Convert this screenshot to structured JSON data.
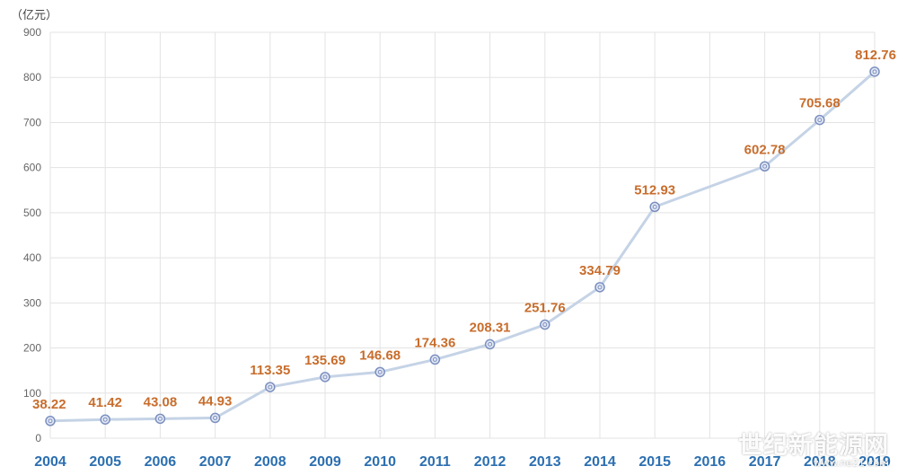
{
  "unit_label": "（亿元）",
  "watermark": {
    "title": "世纪新能源网",
    "url": "www.ne21.com"
  },
  "chart_data": {
    "type": "line",
    "title": "",
    "xlabel": "",
    "ylabel": "（亿元）",
    "x": [
      "2004",
      "2005",
      "2006",
      "2007",
      "2008",
      "2009",
      "2010",
      "2011",
      "2012",
      "2013",
      "2014",
      "2015",
      "2016",
      "2017",
      "2018",
      "2019"
    ],
    "ylim": [
      0,
      900
    ],
    "yticks": [
      0,
      100,
      200,
      300,
      400,
      500,
      600,
      700,
      800,
      900
    ],
    "grid": true,
    "series": [
      {
        "values": [
          38.22,
          41.42,
          43.08,
          44.93,
          113.35,
          135.69,
          146.68,
          174.36,
          208.31,
          251.76,
          334.79,
          512.93,
          null,
          602.78,
          705.68,
          812.76
        ],
        "labels": [
          "38.22",
          "41.42",
          "43.08",
          "44.93",
          "113.35",
          "135.69",
          "146.68",
          "174.36",
          "208.31",
          "251.76",
          "334.79",
          "512.93",
          "",
          "602.78",
          "705.68",
          "812.76"
        ]
      }
    ],
    "colors": {
      "line": "#c5d3e6",
      "marker_stroke": "#7b8fbf",
      "marker_fill": "#e3e8f4",
      "value_label": "#c86d2c",
      "x_tick": "#2c6fb0",
      "y_tick": "#666666",
      "grid": "#e3e3e3"
    }
  }
}
